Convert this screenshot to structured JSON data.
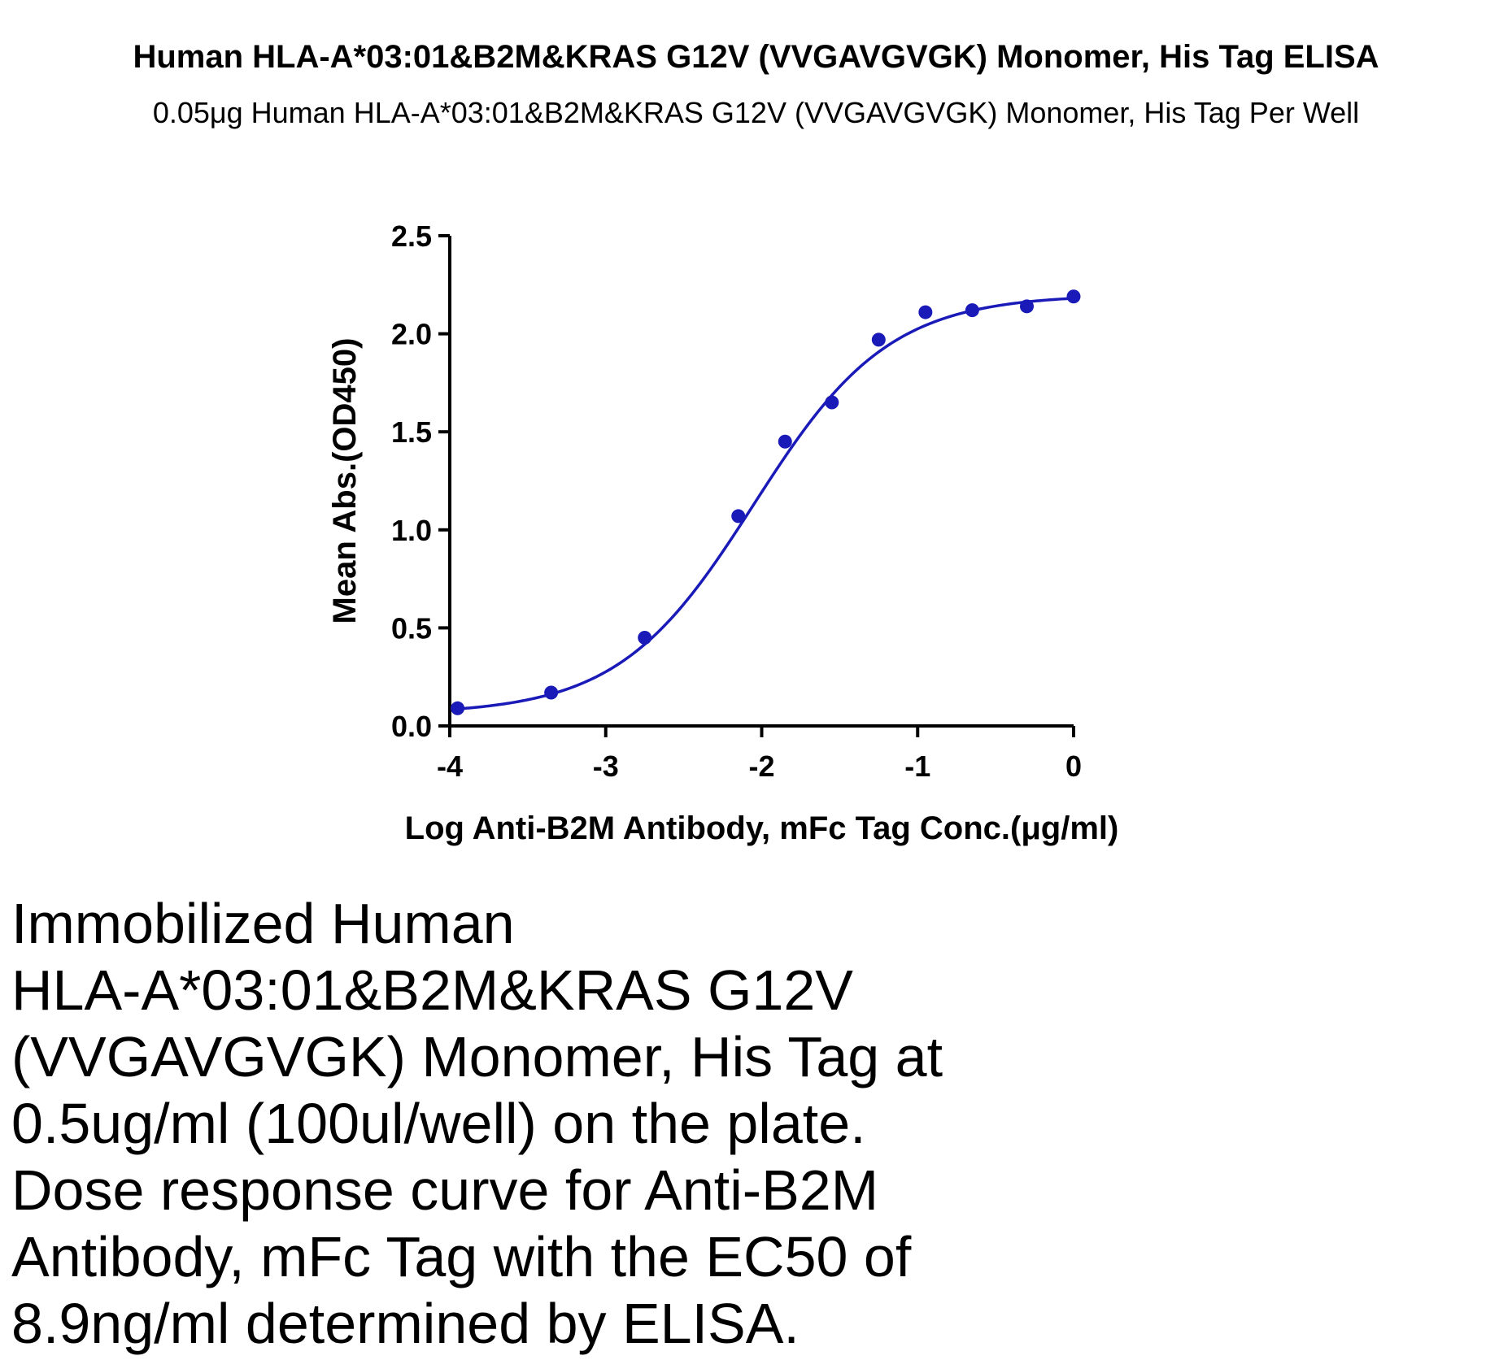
{
  "title": "Human HLA-A*03:01&B2M&KRAS G12V (VVGAVGVGK) Monomer, His Tag ELISA",
  "subtitle": "0.05μg Human HLA-A*03:01&B2M&KRAS G12V (VVGAVGVGK) Monomer, His Tag Per Well",
  "caption_lines": [
    "Immobilized Human",
    "HLA-A*03:01&B2M&KRAS G12V",
    "(VVGAVGVGK) Monomer, His Tag at",
    "0.5ug/ml (100ul/well) on the plate.",
    "Dose response curve for Anti-B2M",
    "Antibody, mFc Tag with the EC50 of",
    "8.9ng/ml determined by ELISA."
  ],
  "colors": {
    "series": "#1a1ab8",
    "axis": "#000000"
  },
  "chart_data": {
    "type": "scatter",
    "xlabel": "Log Anti-B2M Antibody, mFc Tag Conc.(μg/ml)",
    "ylabel": "Mean Abs.(OD450)",
    "xlim": [
      -4,
      0
    ],
    "ylim": [
      0,
      2.5
    ],
    "x_ticks": [
      -4,
      -3,
      -2,
      -1,
      0
    ],
    "x_tick_labels": [
      "-4",
      "-3",
      "-2",
      "-1",
      "0"
    ],
    "y_ticks": [
      0,
      0.5,
      1.0,
      1.5,
      2.0,
      2.5
    ],
    "y_tick_labels": [
      "0.0",
      "0.5",
      "1.0",
      "1.5",
      "2.0",
      "2.5"
    ],
    "grid": false,
    "series": [
      {
        "x": [
          -3.95,
          -3.35,
          -2.75,
          -2.15,
          -1.85,
          -1.55,
          -1.25,
          -0.95,
          -0.65,
          -0.3,
          0.0
        ],
        "y": [
          0.09,
          0.17,
          0.45,
          1.07,
          1.45,
          1.65,
          1.97,
          2.11,
          2.12,
          2.14,
          2.19
        ]
      }
    ],
    "fit_curve": {
      "model": "4PL",
      "bottom": 0.06,
      "top": 2.2,
      "ec50": 8.9,
      "ec50_unit": "ng/ml",
      "hill": 1.0
    }
  }
}
